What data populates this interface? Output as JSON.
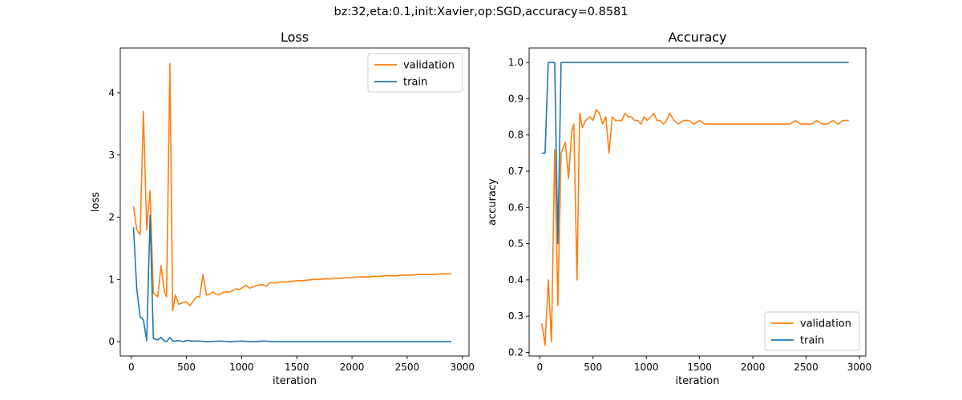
{
  "figure": {
    "suptitle": "bz:32,eta:0.1,init:Xavier,op:SGD,accuracy=0.8581"
  },
  "colors": {
    "validation": "#ff7f0e",
    "train": "#1f77b4",
    "axes": "#000000"
  },
  "chart_data": [
    {
      "type": "line",
      "title": "Loss",
      "xlabel": "iteration",
      "ylabel": "loss",
      "xlim": [
        -100,
        3060
      ],
      "ylim": [
        -0.23,
        4.72
      ],
      "xticks": [
        0,
        500,
        1000,
        1500,
        2000,
        2500,
        3000
      ],
      "yticks": [
        0,
        1,
        2,
        3,
        4
      ],
      "ytick_labels": [
        "0",
        "1",
        "2",
        "3",
        "4"
      ],
      "grid": false,
      "legend": "upper right",
      "legend_entries": [
        "validation",
        "train"
      ],
      "series": [
        {
          "name": "validation",
          "color": "#ff7f0e",
          "x": [
            20,
            50,
            80,
            110,
            140,
            170,
            200,
            240,
            270,
            300,
            320,
            350,
            375,
            400,
            430,
            470,
            500,
            530,
            560,
            590,
            620,
            650,
            680,
            710,
            740,
            770,
            800,
            830,
            860,
            890,
            920,
            950,
            980,
            1010,
            1040,
            1070,
            1100,
            1130,
            1160,
            1190,
            1220,
            1260,
            1300,
            1350,
            1400,
            1450,
            1500,
            1550,
            1600,
            1650,
            1700,
            1750,
            1800,
            1850,
            1900,
            1950,
            2000,
            2050,
            2100,
            2150,
            2200,
            2250,
            2300,
            2350,
            2400,
            2450,
            2500,
            2550,
            2600,
            2650,
            2700,
            2750,
            2800,
            2850,
            2900
          ],
          "y": [
            2.18,
            1.8,
            1.72,
            3.7,
            1.8,
            2.43,
            0.78,
            0.72,
            1.22,
            0.8,
            0.72,
            4.47,
            0.5,
            0.75,
            0.6,
            0.63,
            0.64,
            0.58,
            0.65,
            0.72,
            0.72,
            1.08,
            0.75,
            0.76,
            0.8,
            0.76,
            0.76,
            0.79,
            0.8,
            0.8,
            0.82,
            0.85,
            0.84,
            0.87,
            0.91,
            0.86,
            0.88,
            0.9,
            0.91,
            0.92,
            0.89,
            0.95,
            0.94,
            0.96,
            0.96,
            0.97,
            0.98,
            0.98,
            0.99,
            1.0,
            1.0,
            1.01,
            1.01,
            1.02,
            1.02,
            1.03,
            1.03,
            1.04,
            1.04,
            1.04,
            1.05,
            1.05,
            1.06,
            1.06,
            1.06,
            1.07,
            1.07,
            1.07,
            1.08,
            1.08,
            1.08,
            1.08,
            1.09,
            1.09,
            1.09
          ]
        },
        {
          "name": "train",
          "color": "#1f77b4",
          "x": [
            20,
            50,
            80,
            110,
            140,
            170,
            200,
            240,
            270,
            300,
            320,
            350,
            375,
            400,
            430,
            470,
            500,
            550,
            600,
            700,
            800,
            900,
            1000,
            1100,
            1200,
            1300,
            1500,
            1800,
            2100,
            2400,
            2700,
            2900
          ],
          "y": [
            1.84,
            0.85,
            0.4,
            0.35,
            0.02,
            2.03,
            0.05,
            0.03,
            0.07,
            0.01,
            0.0,
            0.07,
            0.01,
            0.01,
            0.02,
            0.0,
            0.02,
            0.01,
            0.01,
            0.0,
            0.01,
            0.0,
            0.01,
            0.0,
            0.01,
            0.0,
            0.0,
            0.0,
            0.0,
            0.0,
            0.0,
            0.0
          ]
        }
      ]
    },
    {
      "type": "line",
      "title": "Accuracy",
      "xlabel": "iteration",
      "ylabel": "accuracy",
      "xlim": [
        -100,
        3060
      ],
      "ylim": [
        0.19,
        1.04
      ],
      "xticks": [
        0,
        500,
        1000,
        1500,
        2000,
        2500,
        3000
      ],
      "yticks": [
        0.2,
        0.3,
        0.4,
        0.5,
        0.6,
        0.7,
        0.8,
        0.9,
        1.0
      ],
      "ytick_labels": [
        "0.2",
        "0.3",
        "0.4",
        "0.5",
        "0.6",
        "0.7",
        "0.8",
        "0.9",
        "1.0"
      ],
      "grid": false,
      "legend": "lower right",
      "legend_entries": [
        "validation",
        "train"
      ],
      "series": [
        {
          "name": "validation",
          "color": "#ff7f0e",
          "x": [
            20,
            50,
            80,
            110,
            140,
            170,
            200,
            240,
            270,
            300,
            320,
            350,
            375,
            400,
            430,
            470,
            500,
            530,
            560,
            590,
            620,
            650,
            680,
            710,
            740,
            770,
            800,
            830,
            860,
            890,
            920,
            950,
            980,
            1010,
            1040,
            1070,
            1100,
            1130,
            1160,
            1190,
            1220,
            1260,
            1300,
            1350,
            1400,
            1450,
            1500,
            1550,
            1600,
            1700,
            1800,
            1900,
            2000,
            2100,
            2200,
            2300,
            2350,
            2400,
            2450,
            2500,
            2550,
            2600,
            2650,
            2700,
            2750,
            2800,
            2850,
            2900
          ],
          "y": [
            0.28,
            0.22,
            0.4,
            0.23,
            0.76,
            0.33,
            0.75,
            0.78,
            0.68,
            0.81,
            0.83,
            0.4,
            0.86,
            0.82,
            0.84,
            0.85,
            0.84,
            0.87,
            0.86,
            0.83,
            0.85,
            0.75,
            0.85,
            0.84,
            0.84,
            0.84,
            0.86,
            0.85,
            0.85,
            0.84,
            0.84,
            0.83,
            0.85,
            0.84,
            0.85,
            0.86,
            0.84,
            0.84,
            0.83,
            0.84,
            0.86,
            0.84,
            0.83,
            0.84,
            0.84,
            0.83,
            0.84,
            0.83,
            0.83,
            0.83,
            0.83,
            0.83,
            0.83,
            0.83,
            0.83,
            0.83,
            0.83,
            0.84,
            0.83,
            0.83,
            0.83,
            0.84,
            0.83,
            0.83,
            0.84,
            0.83,
            0.84,
            0.84
          ]
        },
        {
          "name": "train",
          "color": "#1f77b4",
          "x": [
            20,
            50,
            80,
            110,
            140,
            170,
            200,
            240,
            300,
            500,
            1000,
            1500,
            2000,
            2500,
            2900
          ],
          "y": [
            0.75,
            0.75,
            1.0,
            1.0,
            1.0,
            0.5,
            1.0,
            1.0,
            1.0,
            1.0,
            1.0,
            1.0,
            1.0,
            1.0,
            1.0
          ]
        }
      ]
    }
  ]
}
